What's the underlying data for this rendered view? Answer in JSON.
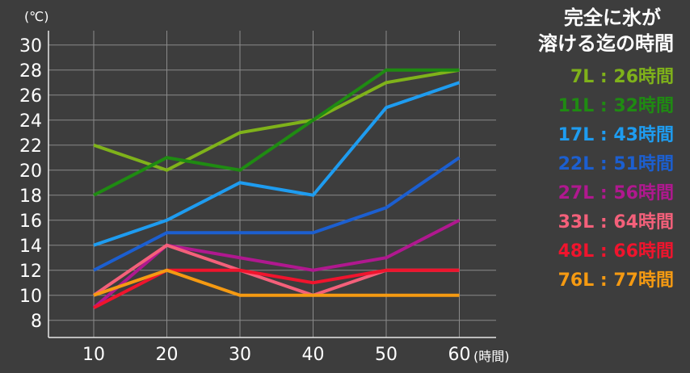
{
  "chart_data": {
    "type": "line",
    "y_unit": "(℃)",
    "x_unit": "(時間)",
    "x": [
      10,
      20,
      30,
      40,
      50,
      60
    ],
    "x_ticks": [
      "10",
      "20",
      "30",
      "40",
      "50",
      "60"
    ],
    "y_ticks": [
      "8",
      "10",
      "12",
      "14",
      "16",
      "18",
      "20",
      "22",
      "24",
      "26",
      "28",
      "30"
    ],
    "ylim": [
      6.5,
      31
    ],
    "grid": true,
    "legend_title": [
      "完全に氷が",
      "溶ける迄の時間"
    ],
    "legend_position": "right",
    "series": [
      {
        "name": "7L : 26時間",
        "color": "#7fb21a",
        "values": [
          22,
          20,
          23,
          24,
          27,
          28
        ]
      },
      {
        "name": "11L : 32時間",
        "color": "#1f8b12",
        "values": [
          18,
          21,
          20,
          24,
          28,
          28
        ]
      },
      {
        "name": "17L : 43時間",
        "color": "#1e9cf0",
        "values": [
          14,
          16,
          19,
          18,
          25,
          27
        ]
      },
      {
        "name": "22L : 51時間",
        "color": "#1c5fd0",
        "values": [
          12,
          15,
          15,
          15,
          17,
          21
        ]
      },
      {
        "name": "27L : 56時間",
        "color": "#b0188f",
        "values": [
          9,
          14,
          13,
          12,
          13,
          16
        ]
      },
      {
        "name": "33L : 64時間",
        "color": "#f4607a",
        "values": [
          10,
          14,
          12,
          10,
          12,
          12
        ]
      },
      {
        "name": "48L : 66時間",
        "color": "#f0142d",
        "values": [
          9,
          12,
          12,
          11,
          12,
          12
        ]
      },
      {
        "name": "76L : 77時間",
        "color": "#f59a12",
        "values": [
          10,
          12,
          10,
          10,
          10,
          10
        ]
      }
    ]
  }
}
